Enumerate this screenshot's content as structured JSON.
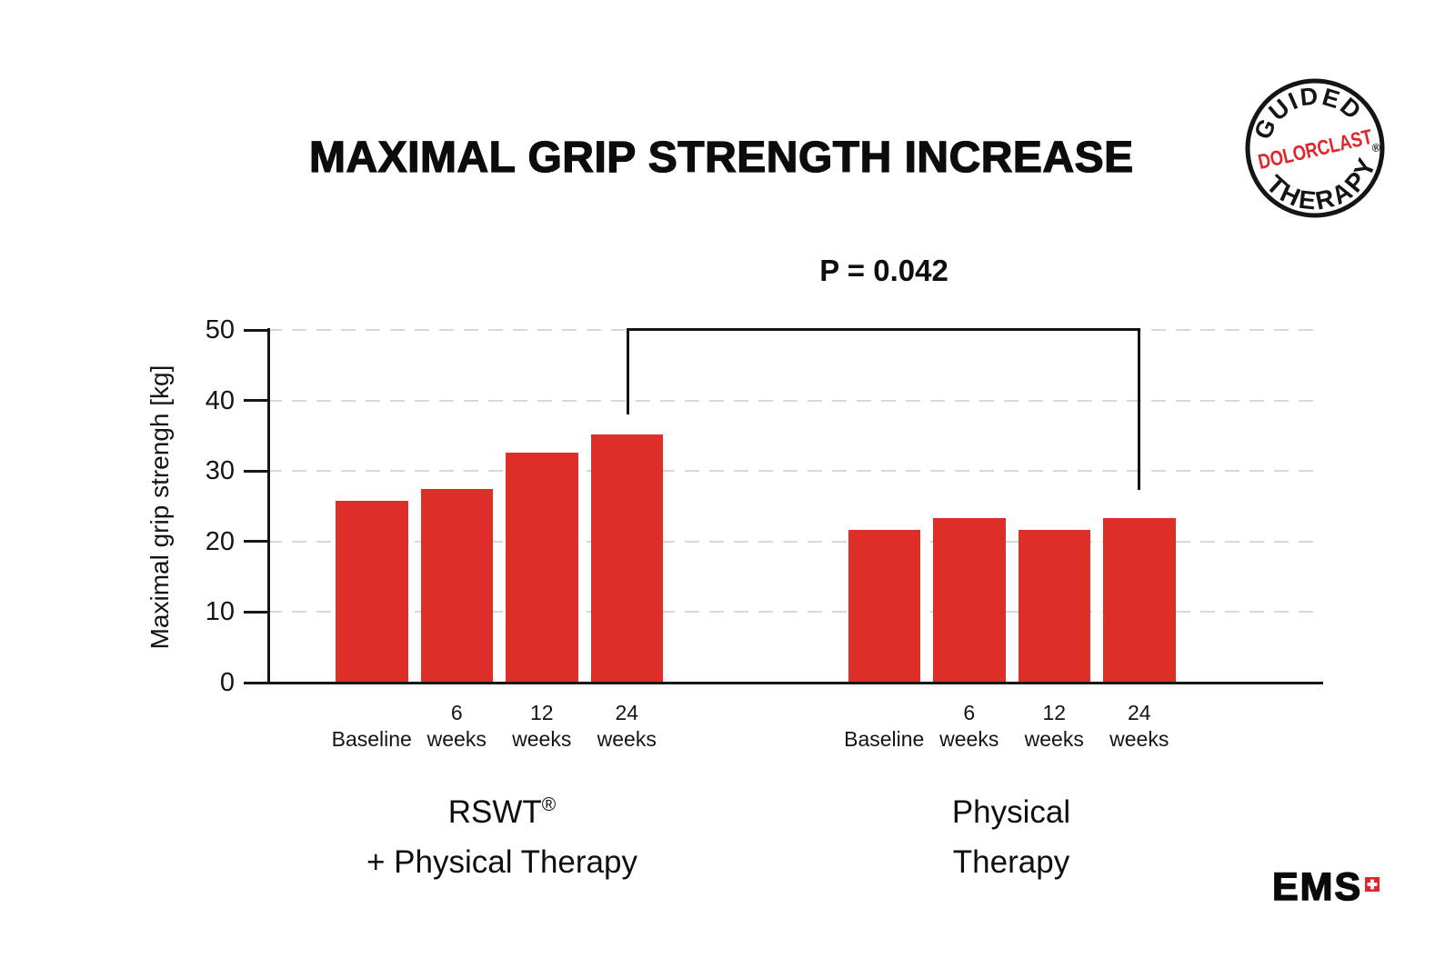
{
  "title": "MAXIMAL GRIP STRENGTH INCREASE",
  "chart_data": {
    "type": "bar",
    "title": "MAXIMAL GRIP STRENGTH INCREASE",
    "xlabel": "",
    "ylabel": "Maximal grip strengh [kg]",
    "ylim": [
      0,
      50
    ],
    "yticks": [
      0,
      10,
      20,
      30,
      40,
      50
    ],
    "grid": "horizontal-dashed",
    "legend": "none",
    "bar_color": "#DE2E28",
    "categories": [
      "Baseline",
      "6 weeks",
      "12 weeks",
      "24 weeks"
    ],
    "xticks": [
      {
        "top": "",
        "bottom": "Baseline"
      },
      {
        "top": "6",
        "bottom": "weeks"
      },
      {
        "top": "12",
        "bottom": "weeks"
      },
      {
        "top": "24",
        "bottom": "weeks"
      }
    ],
    "series": [
      {
        "name": "RSWT® + Physical Therapy",
        "values": [
          25.8,
          27.5,
          32.6,
          35.2
        ]
      },
      {
        "name": "Physical Therapy",
        "values": [
          21.6,
          23.3,
          21.6,
          23.3
        ]
      }
    ],
    "significance": {
      "label": "P = 0.042",
      "from": "RSWT® + Physical Therapy — 24 weeks",
      "to": "Physical Therapy — 24 weeks"
    }
  },
  "groups": [
    {
      "line1": "RSWT",
      "line1_sup": "®",
      "line2": "+ Physical Therapy"
    },
    {
      "line1": "Physical",
      "line1_sup": "",
      "line2": "Therapy"
    }
  ],
  "badge": {
    "arc_top": "GUIDED",
    "center": "DOLORCLAST",
    "arc_bottom": "THERAPY",
    "registered": "®",
    "accent": "#E4242A"
  },
  "ems": {
    "text": "EMS"
  },
  "colors": {
    "bar": "#DE2E28",
    "grid": "#D8D8D8",
    "axis": "#161616",
    "badge_red": "#E4242A"
  }
}
